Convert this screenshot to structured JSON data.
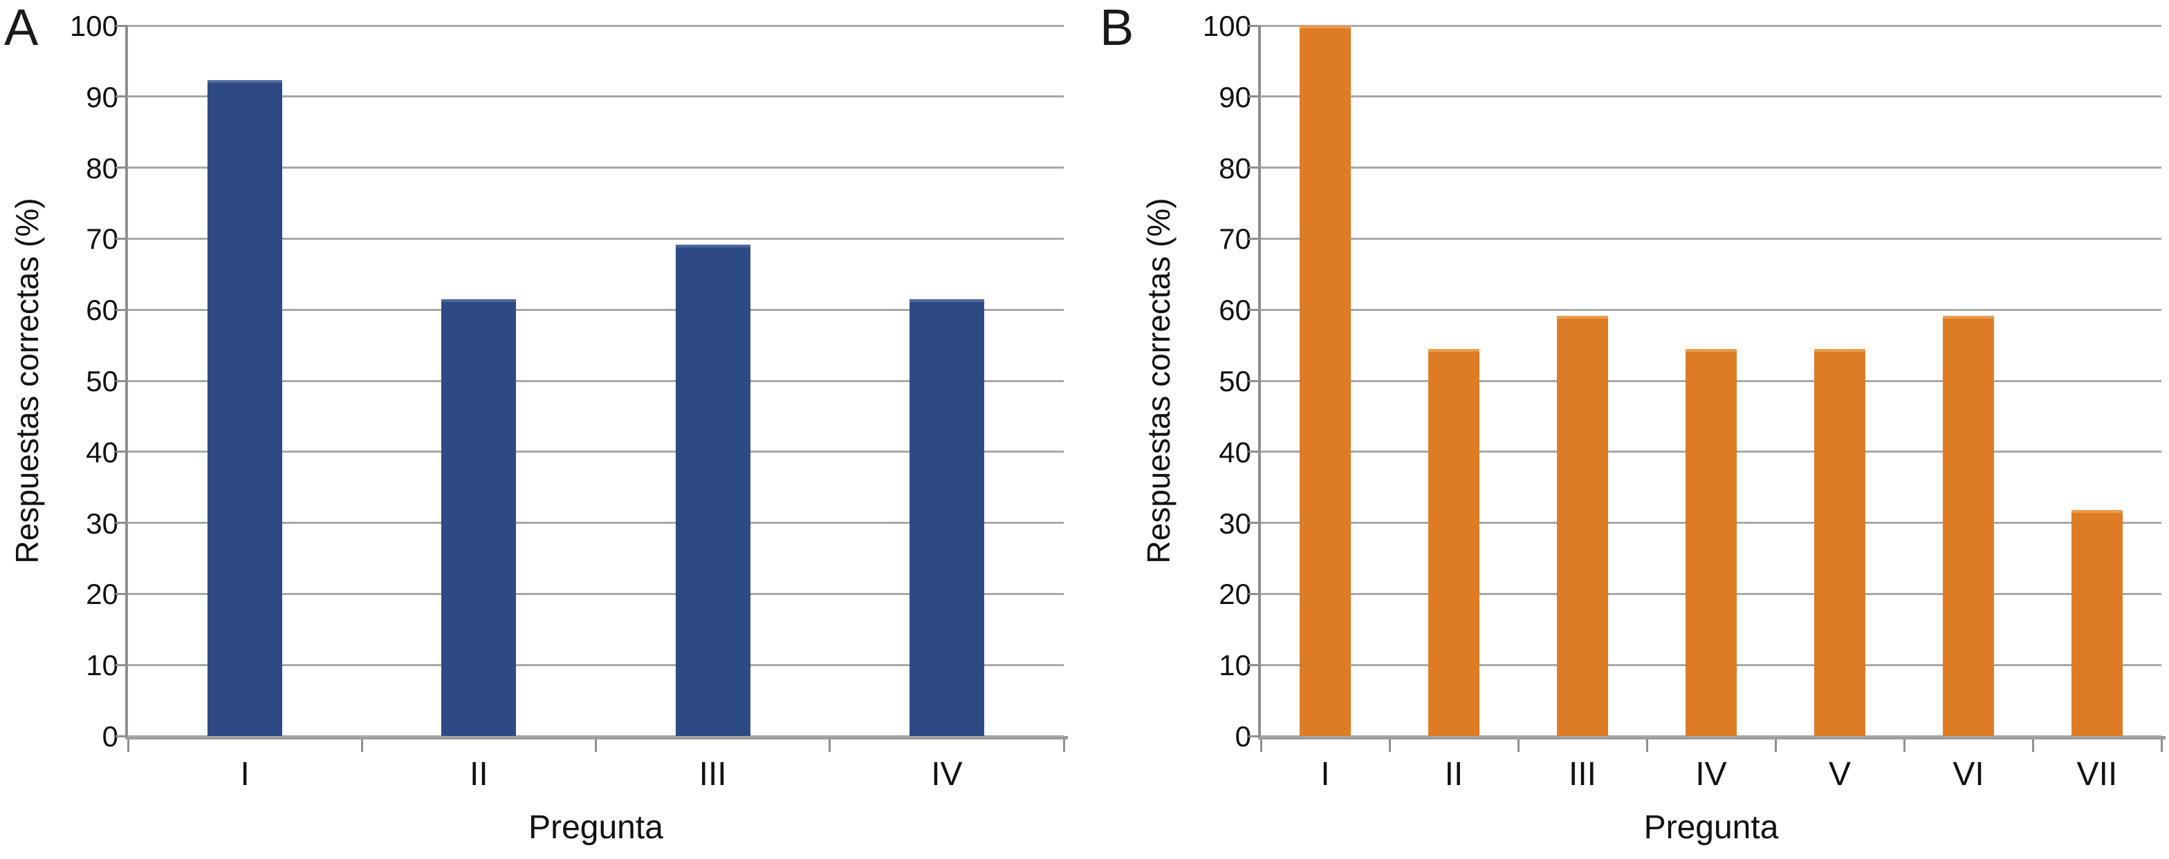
{
  "figure_type": "two-panel bar chart",
  "chart_data": [
    {
      "type": "bar",
      "panel_label": "A",
      "categories": [
        "I",
        "II",
        "III",
        "IV"
      ],
      "values": [
        92.3,
        61.5,
        69.2,
        61.5
      ],
      "xlabel": "Pregunta",
      "ylabel": "Respuestas correctas (%)",
      "ylim": [
        0,
        100
      ],
      "yticks": [
        0,
        10,
        20,
        30,
        40,
        50,
        60,
        70,
        80,
        90,
        100
      ],
      "grid": true,
      "legend": "none",
      "bar_color": "#2E4A85",
      "bar_top_highlight_color": "#4F67A0",
      "gridline_color": "#a8a8a8",
      "axis_color": "#8f8f8f",
      "baseline_color": "#9b9b9b"
    },
    {
      "type": "bar",
      "panel_label": "B",
      "categories": [
        "I",
        "II",
        "III",
        "IV",
        "V",
        "VI",
        "VII"
      ],
      "values": [
        100,
        54.5,
        59.1,
        54.5,
        54.5,
        59.1,
        31.8
      ],
      "xlabel": "Pregunta",
      "ylabel": "Respuestas correctas (%)",
      "ylim": [
        0,
        100
      ],
      "yticks": [
        0,
        10,
        20,
        30,
        40,
        50,
        60,
        70,
        80,
        90,
        100
      ],
      "grid": true,
      "legend": "none",
      "bar_color": "#DE7C25",
      "bar_top_highlight_color": "#EA9C4F",
      "gridline_color": "#a8a8a8",
      "axis_color": "#8f8f8f",
      "baseline_color": "#9b9b9b"
    }
  ]
}
